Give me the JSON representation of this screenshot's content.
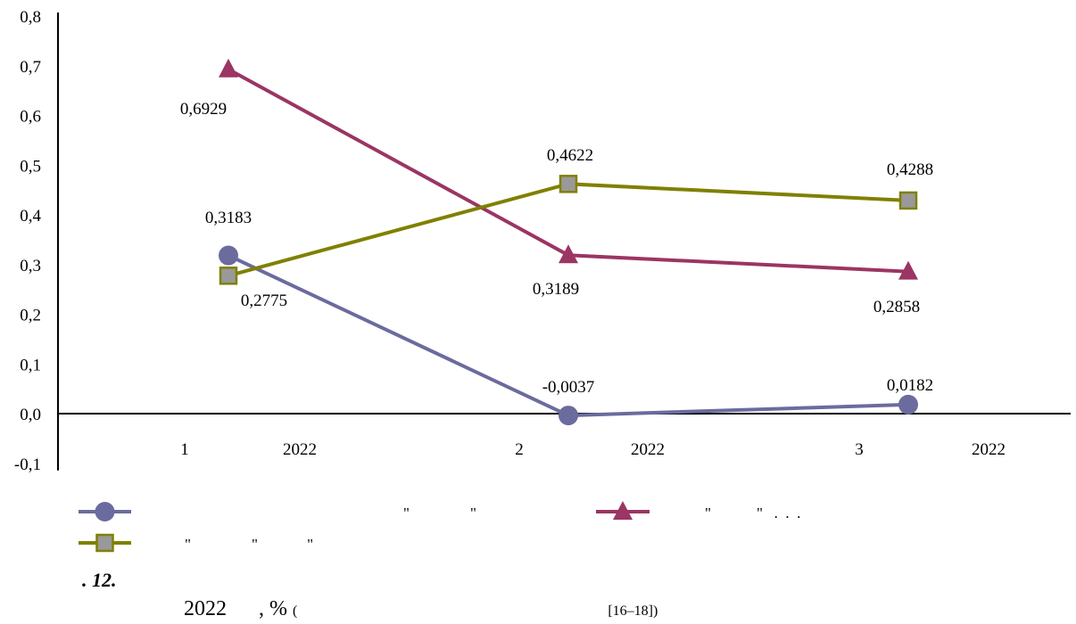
{
  "chart_data": {
    "type": "line",
    "categories": [
      {
        "num": "1",
        "year": "2022"
      },
      {
        "num": "2",
        "year": "2022"
      },
      {
        "num": "3",
        "year": "2022"
      }
    ],
    "ylim": [
      -0.1,
      0.8
    ],
    "yticks": [
      "-0,1",
      "0,0",
      "0,1",
      "0,2",
      "0,3",
      "0,4",
      "0,5",
      "0,6",
      "0,7",
      "0,8"
    ],
    "series": [
      {
        "marker": "circle",
        "color": "#6b6b9e",
        "values": [
          0.3183,
          -0.0037,
          0.0182
        ],
        "labels": [
          "0,3183",
          "-0,0037",
          "0,0182"
        ]
      },
      {
        "marker": "triangle",
        "color": "#9b3563",
        "values": [
          0.6929,
          0.3189,
          0.2858
        ],
        "labels": [
          "0,6929",
          "0,3189",
          "0,2858"
        ]
      },
      {
        "marker": "square",
        "color": "#808000",
        "fill": "#999999",
        "values": [
          0.2775,
          0.4622,
          0.4288
        ],
        "labels": [
          "0,2775",
          "0,4622",
          "0,4288"
        ]
      }
    ],
    "legend": [
      {
        "marker": "circle",
        "text": "\"                \""
      },
      {
        "marker": "triangle",
        "text": "\"            \"   .  .  ."
      },
      {
        "marker": "square",
        "text": "\"                \"             \""
      }
    ],
    "grid": false,
    "legend_position": "bottom"
  },
  "caption": {
    "number": ". 12.",
    "year": "2022",
    "unit": ", %",
    "paren_open": "(",
    "ref": "[16–18])"
  }
}
